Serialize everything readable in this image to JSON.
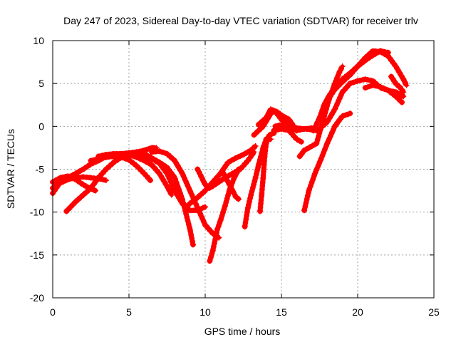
{
  "chart_data": {
    "type": "scatter",
    "title": "Day 247 of 2023, Sidereal Day-to-day VTEC variation (SDTVAR) for receiver trlv",
    "xlabel": "GPS time / hours",
    "ylabel": "SDTVAR / TECUs",
    "xlim": [
      0,
      25
    ],
    "ylim": [
      -20,
      10
    ],
    "xticks": [
      0,
      5,
      10,
      15,
      20,
      25
    ],
    "yticks": [
      -20,
      -15,
      -10,
      -5,
      0,
      5,
      10
    ],
    "grid": true,
    "legend": "none",
    "color": "#ff0000",
    "series": [
      {
        "values": [
          [
            0.0,
            -7.8
          ],
          [
            0.5,
            -6.5
          ],
          [
            1.0,
            -6.0
          ],
          [
            1.5,
            -5.5
          ],
          [
            2.0,
            -5.0
          ],
          [
            2.5,
            -4.4
          ],
          [
            3.0,
            -4.0
          ],
          [
            3.5,
            -3.5
          ],
          [
            4.0,
            -3.3
          ],
          [
            4.5,
            -3.2
          ],
          [
            5.0,
            -3.1
          ],
          [
            5.5,
            -3.0
          ],
          [
            6.0,
            -2.8
          ],
          [
            6.5,
            -2.5
          ],
          [
            6.8,
            -2.5
          ]
        ]
      },
      {
        "values": [
          [
            0.0,
            -7.2
          ],
          [
            0.5,
            -6.6
          ],
          [
            1.0,
            -6.2
          ],
          [
            1.5,
            -6.0
          ],
          [
            2.0,
            -5.9
          ],
          [
            2.5,
            -6.0
          ],
          [
            3.0,
            -6.1
          ],
          [
            3.5,
            -6.3
          ]
        ]
      },
      {
        "values": [
          [
            0.0,
            -6.5
          ],
          [
            0.5,
            -6.0
          ],
          [
            1.0,
            -5.8
          ],
          [
            1.5,
            -6.2
          ],
          [
            2.0,
            -6.8
          ],
          [
            2.5,
            -7.3
          ],
          [
            2.8,
            -7.5
          ]
        ]
      },
      {
        "values": [
          [
            0.9,
            -9.9
          ],
          [
            1.5,
            -8.8
          ],
          [
            2.0,
            -8.0
          ],
          [
            2.5,
            -7.2
          ],
          [
            3.0,
            -6.0
          ],
          [
            3.5,
            -5.0
          ],
          [
            4.0,
            -4.2
          ],
          [
            4.5,
            -3.6
          ],
          [
            5.0,
            -3.2
          ],
          [
            5.5,
            -3.0
          ],
          [
            6.0,
            -3.2
          ],
          [
            6.5,
            -3.7
          ],
          [
            7.0,
            -4.2
          ],
          [
            7.5,
            -4.8
          ],
          [
            8.0,
            -6.0
          ],
          [
            8.5,
            -8.5
          ],
          [
            9.0,
            -12.0
          ],
          [
            9.2,
            -13.8
          ]
        ]
      },
      {
        "values": [
          [
            2.5,
            -4.0
          ],
          [
            3.0,
            -3.8
          ],
          [
            3.5,
            -3.6
          ],
          [
            4.0,
            -3.5
          ],
          [
            4.5,
            -3.6
          ],
          [
            5.0,
            -3.9
          ],
          [
            5.5,
            -4.6
          ],
          [
            6.0,
            -5.5
          ],
          [
            6.4,
            -6.3
          ]
        ]
      },
      {
        "values": [
          [
            3.0,
            -3.5
          ],
          [
            3.5,
            -3.3
          ],
          [
            4.0,
            -3.2
          ],
          [
            4.5,
            -3.2
          ],
          [
            5.0,
            -3.3
          ],
          [
            5.5,
            -3.6
          ],
          [
            6.0,
            -4.0
          ],
          [
            6.5,
            -4.5
          ],
          [
            7.0,
            -5.5
          ],
          [
            7.5,
            -7.0
          ],
          [
            7.8,
            -8.0
          ]
        ]
      },
      {
        "values": [
          [
            4.5,
            -3.3
          ],
          [
            5.0,
            -3.3
          ],
          [
            5.5,
            -3.4
          ],
          [
            6.0,
            -3.5
          ],
          [
            6.5,
            -3.8
          ],
          [
            7.0,
            -4.3
          ],
          [
            7.5,
            -5.5
          ],
          [
            8.0,
            -7.5
          ],
          [
            8.5,
            -9.0
          ],
          [
            9.0,
            -9.8
          ],
          [
            9.5,
            -9.8
          ],
          [
            10.0,
            -9.4
          ]
        ]
      },
      {
        "values": [
          [
            6.5,
            -3.0
          ],
          [
            7.0,
            -2.9
          ],
          [
            7.5,
            -3.2
          ],
          [
            8.0,
            -4.0
          ],
          [
            8.5,
            -5.5
          ],
          [
            9.0,
            -7.5
          ],
          [
            9.5,
            -9.5
          ],
          [
            10.0,
            -11.5
          ],
          [
            10.5,
            -12.5
          ],
          [
            10.9,
            -13.0
          ]
        ]
      },
      {
        "values": [
          [
            8.7,
            -9.5
          ],
          [
            9.0,
            -9.0
          ],
          [
            9.5,
            -8.3
          ],
          [
            10.0,
            -7.5
          ],
          [
            10.5,
            -6.5
          ],
          [
            11.0,
            -5.5
          ],
          [
            11.5,
            -4.2
          ],
          [
            12.0,
            -3.7
          ],
          [
            12.5,
            -3.3
          ],
          [
            13.0,
            -2.8
          ],
          [
            13.3,
            -2.3
          ]
        ]
      },
      {
        "values": [
          [
            9.5,
            -5.0
          ],
          [
            10.0,
            -6.8
          ],
          [
            10.3,
            -7.2
          ],
          [
            10.8,
            -6.6
          ],
          [
            11.3,
            -6.0
          ],
          [
            11.8,
            -5.5
          ],
          [
            12.3,
            -5.0
          ],
          [
            12.8,
            -4.0
          ],
          [
            13.2,
            -3.0
          ]
        ]
      },
      {
        "values": [
          [
            10.3,
            -15.7
          ],
          [
            10.5,
            -14.5
          ],
          [
            10.8,
            -12.0
          ],
          [
            11.0,
            -11.0
          ],
          [
            11.3,
            -9.3
          ],
          [
            11.6,
            -7.4
          ],
          [
            11.9,
            -6.0
          ],
          [
            12.2,
            -5.0
          ]
        ]
      },
      {
        "values": [
          [
            11.2,
            -5.5
          ],
          [
            11.5,
            -6.5
          ],
          [
            11.8,
            -7.5
          ],
          [
            12.0,
            -8.2
          ],
          [
            12.2,
            -8.5
          ]
        ]
      },
      {
        "values": [
          [
            12.6,
            -11.7
          ],
          [
            12.8,
            -9.5
          ],
          [
            13.0,
            -8.0
          ],
          [
            13.3,
            -6.0
          ],
          [
            13.5,
            -4.5
          ],
          [
            13.8,
            -2.5
          ],
          [
            14.0,
            -1.5
          ],
          [
            14.3,
            -1.5
          ]
        ]
      },
      {
        "values": [
          [
            13.6,
            -9.9
          ],
          [
            13.7,
            -8.0
          ],
          [
            13.8,
            -6.0
          ],
          [
            13.9,
            -3.5
          ],
          [
            14.0,
            -2.0
          ],
          [
            14.2,
            -1.0
          ],
          [
            14.5,
            -0.8
          ]
        ]
      },
      {
        "values": [
          [
            13.2,
            -1.0
          ],
          [
            13.5,
            -0.5
          ],
          [
            13.8,
            0.0
          ],
          [
            14.0,
            0.6
          ],
          [
            14.3,
            1.5
          ],
          [
            14.5,
            1.8
          ],
          [
            14.7,
            1.5
          ],
          [
            15.0,
            0.8
          ],
          [
            15.3,
            0.5
          ],
          [
            15.5,
            0.3
          ],
          [
            15.8,
            -0.5
          ]
        ]
      },
      {
        "values": [
          [
            13.5,
            0.2
          ],
          [
            14.0,
            1.0
          ],
          [
            14.3,
            2.0
          ],
          [
            14.7,
            1.7
          ],
          [
            15.0,
            1.3
          ],
          [
            15.5,
            0.8
          ],
          [
            16.0,
            -0.5
          ],
          [
            16.5,
            -0.3
          ],
          [
            17.0,
            -0.2
          ],
          [
            17.3,
            -0.5
          ]
        ]
      },
      {
        "values": [
          [
            14.5,
            -0.5
          ],
          [
            15.0,
            -0.3
          ],
          [
            15.5,
            -0.5
          ],
          [
            16.0,
            -1.5
          ],
          [
            16.3,
            -1.8
          ]
        ]
      },
      {
        "values": [
          [
            14.6,
            0.0
          ],
          [
            15.0,
            0.2
          ],
          [
            15.5,
            0.0
          ],
          [
            16.0,
            -0.2
          ],
          [
            16.5,
            -0.3
          ],
          [
            17.0,
            -0.4
          ],
          [
            17.5,
            -0.3
          ],
          [
            18.0,
            0.5
          ],
          [
            18.5,
            2.0
          ],
          [
            19.0,
            4.0
          ],
          [
            19.5,
            5.0
          ],
          [
            20.0,
            5.3
          ],
          [
            20.5,
            5.5
          ],
          [
            21.0,
            5.3
          ],
          [
            21.5,
            4.5
          ],
          [
            22.0,
            4.2
          ],
          [
            22.5,
            3.5
          ],
          [
            22.9,
            2.8
          ]
        ]
      },
      {
        "values": [
          [
            16.2,
            -3.5
          ],
          [
            16.5,
            -2.8
          ],
          [
            16.8,
            -2.5
          ],
          [
            17.3,
            -2.0
          ],
          [
            17.7,
            0.5
          ],
          [
            18.1,
            3.0
          ],
          [
            18.5,
            5.0
          ],
          [
            18.8,
            6.3
          ],
          [
            19.0,
            7.0
          ]
        ]
      },
      {
        "values": [
          [
            16.5,
            -9.8
          ],
          [
            16.8,
            -7.5
          ],
          [
            17.2,
            -5.5
          ],
          [
            17.6,
            -3.8
          ],
          [
            18.0,
            -2.0
          ],
          [
            18.5,
            0.0
          ],
          [
            19.0,
            1.2
          ],
          [
            19.5,
            1.5
          ]
        ]
      },
      {
        "values": [
          [
            17.1,
            -0.5
          ],
          [
            17.5,
            1.0
          ],
          [
            17.8,
            2.5
          ],
          [
            18.1,
            3.5
          ],
          [
            18.5,
            4.5
          ],
          [
            19.0,
            5.5
          ],
          [
            19.5,
            6.2
          ],
          [
            20.0,
            7.0
          ],
          [
            20.5,
            7.7
          ],
          [
            21.0,
            8.3
          ],
          [
            21.5,
            8.8
          ],
          [
            22.0,
            8.6
          ]
        ]
      },
      {
        "values": [
          [
            17.6,
            1.3
          ],
          [
            18.0,
            3.0
          ],
          [
            18.5,
            4.3
          ],
          [
            19.0,
            5.2
          ],
          [
            19.5,
            6.0
          ],
          [
            20.0,
            7.0
          ],
          [
            20.5,
            8.0
          ],
          [
            21.0,
            8.8
          ],
          [
            21.5,
            8.7
          ],
          [
            22.0,
            8.2
          ],
          [
            22.5,
            7.0
          ],
          [
            23.0,
            5.5
          ],
          [
            23.2,
            4.8
          ]
        ]
      },
      {
        "values": [
          [
            20.5,
            4.5
          ],
          [
            21.0,
            4.8
          ],
          [
            21.5,
            4.6
          ],
          [
            22.0,
            4.2
          ],
          [
            22.5,
            4.0
          ],
          [
            23.0,
            3.5
          ]
        ]
      },
      {
        "values": [
          [
            22.2,
            5.8
          ],
          [
            22.5,
            5.0
          ],
          [
            22.8,
            4.5
          ],
          [
            23.0,
            4.0
          ]
        ]
      }
    ]
  }
}
